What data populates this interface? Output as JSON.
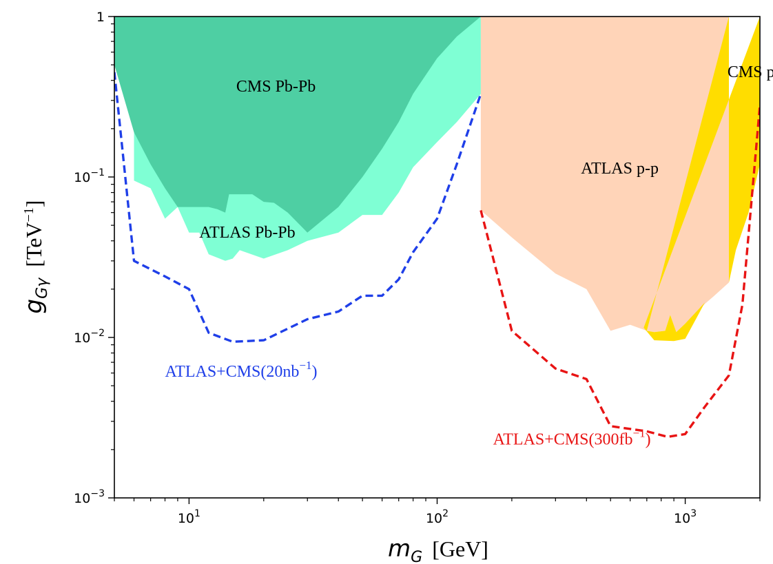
{
  "chart_data": {
    "type": "area",
    "x_scale": "log",
    "y_scale": "log",
    "xlim": [
      5,
      2000
    ],
    "ylim": [
      0.001,
      1
    ],
    "x_ticks": [
      {
        "value": 10,
        "base": "10",
        "exp": "1"
      },
      {
        "value": 100,
        "base": "10",
        "exp": "2"
      },
      {
        "value": 1000,
        "base": "10",
        "exp": "3"
      }
    ],
    "y_ticks": [
      {
        "value": 0.001,
        "base": "10",
        "exp": "−3"
      },
      {
        "value": 0.01,
        "base": "10",
        "exp": "−2"
      },
      {
        "value": 0.1,
        "base": "10",
        "exp": "−1"
      },
      {
        "value": 1,
        "base": "1",
        "exp": ""
      }
    ],
    "xlabel": {
      "symbol": "m",
      "sub": "G",
      "unit": "[GeV]"
    },
    "ylabel": {
      "symbol": "g",
      "sub": "Gγ",
      "unit_prefix": "[TeV",
      "unit_exp": "−1",
      "unit_suffix": "]"
    },
    "regions": [
      {
        "name": "ATLAS Pb-Pb",
        "label": "ATLAS Pb-Pb",
        "color": "#7fffd4",
        "points": [
          [
            5.0,
            1.0
          ],
          [
            6.0,
            0.6
          ],
          [
            6.0,
            0.095
          ],
          [
            7.0,
            0.085
          ],
          [
            8.0,
            0.055
          ],
          [
            9.0,
            0.065
          ],
          [
            10.0,
            0.045
          ],
          [
            11.0,
            0.045
          ],
          [
            12.0,
            0.033
          ],
          [
            14.0,
            0.03
          ],
          [
            15.0,
            0.031
          ],
          [
            16.0,
            0.035
          ],
          [
            20.0,
            0.031
          ],
          [
            25.0,
            0.035
          ],
          [
            30.0,
            0.04
          ],
          [
            40.0,
            0.045
          ],
          [
            50.0,
            0.058
          ],
          [
            60.0,
            0.058
          ],
          [
            70.0,
            0.08
          ],
          [
            80.0,
            0.115
          ],
          [
            100.0,
            0.165
          ],
          [
            120.0,
            0.22
          ],
          [
            150.0,
            0.33
          ],
          [
            150.0,
            1.0
          ]
        ],
        "label_pos": [
          11.0,
          0.042
        ]
      },
      {
        "name": "CMS Pb-Pb",
        "label": "CMS Pb-Pb",
        "color": "#4ecfa3",
        "points": [
          [
            5.0,
            1.0
          ],
          [
            5.0,
            0.5
          ],
          [
            6.0,
            0.19
          ],
          [
            7.0,
            0.12
          ],
          [
            8.0,
            0.085
          ],
          [
            9.0,
            0.065
          ],
          [
            10.0,
            0.065
          ],
          [
            12.0,
            0.065
          ],
          [
            13.0,
            0.063
          ],
          [
            14.0,
            0.06
          ],
          [
            14.5,
            0.078
          ],
          [
            18.0,
            0.078
          ],
          [
            20.0,
            0.07
          ],
          [
            22.0,
            0.069
          ],
          [
            25.0,
            0.06
          ],
          [
            30.0,
            0.045
          ],
          [
            40.0,
            0.065
          ],
          [
            50.0,
            0.1
          ],
          [
            60.0,
            0.15
          ],
          [
            70.0,
            0.22
          ],
          [
            80.0,
            0.33
          ],
          [
            100.0,
            0.55
          ],
          [
            120.0,
            0.75
          ],
          [
            150.0,
            1.0
          ]
        ],
        "label_pos": [
          15.5,
          0.34
        ]
      },
      {
        "name": "ATLAS p-p",
        "label": "ATLAS p-p",
        "color": "#ffd4b8",
        "points": [
          [
            150.0,
            1.0
          ],
          [
            150.0,
            0.062
          ],
          [
            200.0,
            0.042
          ],
          [
            300.0,
            0.025
          ],
          [
            400.0,
            0.02
          ],
          [
            500.0,
            0.011
          ],
          [
            600.0,
            0.012
          ],
          [
            700.0,
            0.011
          ],
          [
            750.0,
            0.0108
          ],
          [
            830.0,
            0.011
          ],
          [
            870.0,
            0.0138
          ],
          [
            920.0,
            0.0108
          ],
          [
            1000.0,
            0.0122
          ],
          [
            1200.0,
            0.0162
          ],
          [
            1300.0,
            0.018
          ],
          [
            1500.0,
            0.022
          ],
          [
            1500.0,
            1.0
          ]
        ],
        "label_pos": [
          380.0,
          0.105
        ]
      },
      {
        "name": "CMS p-p",
        "label": "CMS p-p",
        "color": "#ffdd00",
        "points": [
          [
            680.0,
            0.0115
          ],
          [
            750.0,
            0.0096
          ],
          [
            900.0,
            0.0095
          ],
          [
            1000.0,
            0.0098
          ],
          [
            1200.0,
            0.0165
          ],
          [
            1000.0,
            0.0122
          ],
          [
            920.0,
            0.0108
          ],
          [
            870.0,
            0.0138
          ],
          [
            830.0,
            0.011
          ],
          [
            750.0,
            0.0108
          ],
          [
            700.0,
            0.011
          ],
          [
            1500.0,
            1.0
          ],
          [
            1500.0,
            0.022
          ],
          [
            1600.0,
            0.035
          ],
          [
            1800.0,
            0.06
          ],
          [
            2000.0,
            0.12
          ],
          [
            2000.0,
            1.0
          ]
        ],
        "label_pos": [
          1480.0,
          0.42
        ]
      }
    ],
    "series": [
      {
        "name": "ATLAS+CMS(20nb⁻¹)",
        "label": "ATLAS+CMS(20nb",
        "label_exp": "−1",
        "label_suffix": ")",
        "color": "#1f3fe8",
        "style": "dashed",
        "x": [
          5,
          6,
          8,
          10,
          12,
          15,
          20,
          30,
          40,
          50,
          60,
          70,
          80,
          100,
          120,
          150
        ],
        "y": [
          0.45,
          0.03,
          0.024,
          0.02,
          0.0107,
          0.0094,
          0.0096,
          0.013,
          0.0145,
          0.0182,
          0.0182,
          0.023,
          0.034,
          0.055,
          0.12,
          0.33
        ],
        "label_pos": [
          8.0,
          0.0057
        ]
      },
      {
        "name": "ATLAS+CMS(300fb⁻¹)",
        "label": "ATLAS+CMS(300fb",
        "label_exp": "−1",
        "label_suffix": ")",
        "color": "#e81414",
        "style": "dashed",
        "x": [
          150,
          200,
          300,
          400,
          500,
          700,
          850,
          1000,
          1200,
          1500,
          1700,
          2000
        ],
        "y": [
          0.062,
          0.011,
          0.0064,
          0.0055,
          0.0028,
          0.0026,
          0.0024,
          0.0025,
          0.0037,
          0.0058,
          0.016,
          0.28
        ],
        "label_pos": [
          168.0,
          0.00215
        ]
      }
    ]
  }
}
